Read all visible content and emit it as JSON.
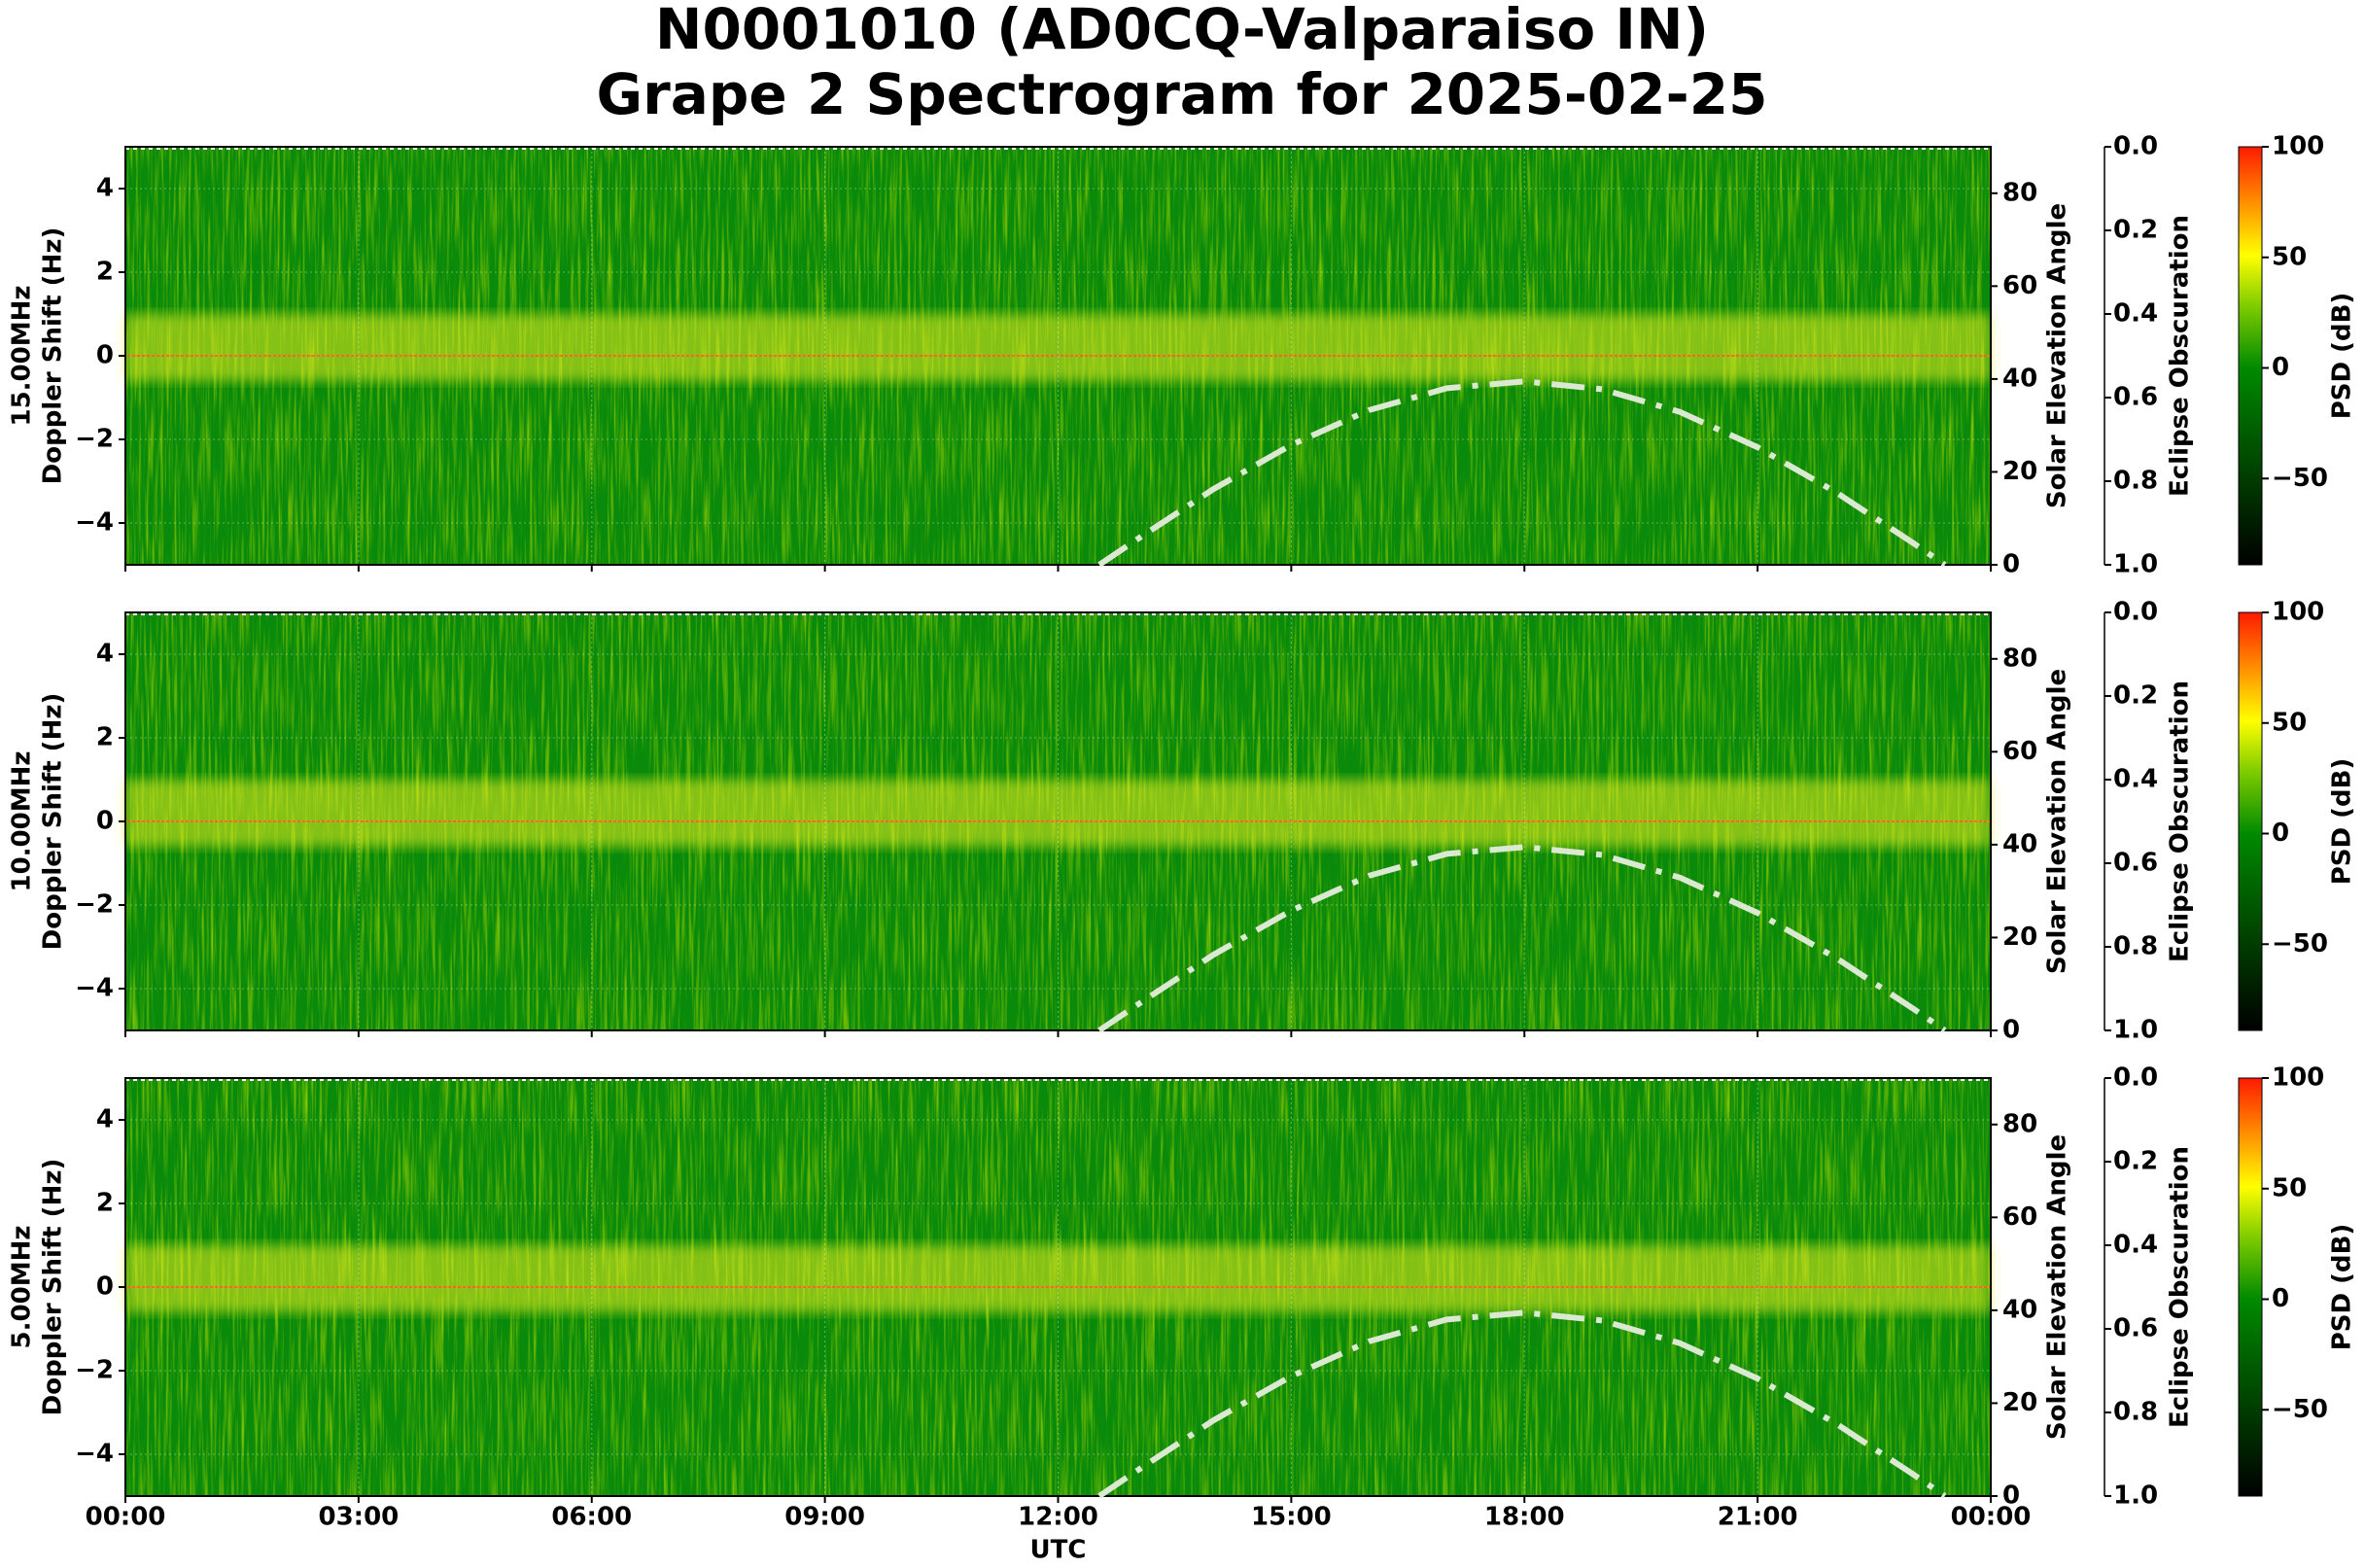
{
  "title": [
    "N0001010 (AD0CQ-Valparaiso IN)",
    "Grape 2 Spectrogram for 2025-02-25"
  ],
  "chart_data": [
    {
      "type": "spectrogram",
      "ylabel": [
        "15.00MHz",
        "Doppler Shift (Hz)"
      ],
      "xlim": [
        0,
        24
      ],
      "xticks": [
        0,
        3,
        6,
        9,
        12,
        15,
        18,
        21,
        24
      ],
      "ylim": [
        -5,
        5
      ],
      "yticks": [
        {
          "value": -4,
          "label": "−4"
        },
        {
          "value": -2,
          "label": "−2"
        },
        0,
        2,
        4
      ],
      "y2label": "Solar Elevation Angle",
      "y2lim": [
        0,
        90
      ],
      "y2ticks": [
        0,
        20,
        40,
        60,
        80
      ],
      "y3label": "Eclipse Obscuration",
      "y3lim": [
        1,
        0
      ],
      "y3ticks": [
        {
          "value": 0,
          "label": "0.0"
        },
        {
          "value": 0.2,
          "label": "0.2"
        },
        {
          "value": 0.4,
          "label": "0.4"
        },
        {
          "value": 0.6,
          "label": "0.6"
        },
        {
          "value": 0.8,
          "label": "0.8"
        },
        {
          "value": 1,
          "label": "1.0"
        }
      ],
      "colorbar_label": "PSD (dB)",
      "clim": [
        -89,
        100
      ],
      "cticks": [
        {
          "value": -50,
          "label": "−50"
        },
        0,
        50,
        100
      ],
      "solar_elevation": {
        "color": "#dbe8d2",
        "axis": "y2",
        "x": [
          12.53,
          13,
          14,
          15,
          16,
          17,
          18,
          19,
          20,
          21,
          22,
          23,
          23.41
        ],
        "values": [
          0,
          5.3,
          16.3,
          25.8,
          33.3,
          38.0,
          39.5,
          37.8,
          32.9,
          25.3,
          15.7,
          4.7,
          0
        ]
      }
    },
    {
      "type": "spectrogram",
      "ylabel": [
        "10.00MHz",
        "Doppler Shift (Hz)"
      ],
      "xlim": [
        0,
        24
      ],
      "xticks": [
        0,
        3,
        6,
        9,
        12,
        15,
        18,
        21,
        24
      ],
      "ylim": [
        -5,
        5
      ],
      "yticks": [
        {
          "value": -4,
          "label": "−4"
        },
        {
          "value": -2,
          "label": "−2"
        },
        0,
        2,
        4
      ],
      "y2label": "Solar Elevation Angle",
      "y2lim": [
        0,
        90
      ],
      "y2ticks": [
        0,
        20,
        40,
        60,
        80
      ],
      "y3label": "Eclipse Obscuration",
      "y3lim": [
        1,
        0
      ],
      "y3ticks": [
        {
          "value": 0,
          "label": "0.0"
        },
        {
          "value": 0.2,
          "label": "0.2"
        },
        {
          "value": 0.4,
          "label": "0.4"
        },
        {
          "value": 0.6,
          "label": "0.6"
        },
        {
          "value": 0.8,
          "label": "0.8"
        },
        {
          "value": 1,
          "label": "1.0"
        }
      ],
      "colorbar_label": "PSD (dB)",
      "clim": [
        -89,
        100
      ],
      "cticks": [
        {
          "value": -50,
          "label": "−50"
        },
        0,
        50,
        100
      ],
      "solar_elevation": {
        "color": "#dbe8d2",
        "axis": "y2",
        "x": [
          12.53,
          13,
          14,
          15,
          16,
          17,
          18,
          19,
          20,
          21,
          22,
          23,
          23.41
        ],
        "values": [
          0,
          5.3,
          16.3,
          25.8,
          33.3,
          38.0,
          39.5,
          37.8,
          32.9,
          25.3,
          15.7,
          4.7,
          0
        ]
      }
    },
    {
      "type": "spectrogram",
      "ylabel": [
        "5.00MHz",
        "Doppler Shift (Hz)"
      ],
      "xlabel": "UTC",
      "xlim": [
        0,
        24
      ],
      "xticks": [
        {
          "value": 0,
          "label": "00:00"
        },
        {
          "value": 3,
          "label": "03:00"
        },
        {
          "value": 6,
          "label": "06:00"
        },
        {
          "value": 9,
          "label": "09:00"
        },
        {
          "value": 12,
          "label": "12:00"
        },
        {
          "value": 15,
          "label": "15:00"
        },
        {
          "value": 18,
          "label": "18:00"
        },
        {
          "value": 21,
          "label": "21:00"
        },
        {
          "value": 24,
          "label": "00:00"
        }
      ],
      "ylim": [
        -5,
        5
      ],
      "yticks": [
        {
          "value": -4,
          "label": "−4"
        },
        {
          "value": -2,
          "label": "−2"
        },
        0,
        2,
        4
      ],
      "y2label": "Solar Elevation Angle",
      "y2lim": [
        0,
        90
      ],
      "y2ticks": [
        0,
        20,
        40,
        60,
        80
      ],
      "y3label": "Eclipse Obscuration",
      "y3lim": [
        1,
        0
      ],
      "y3ticks": [
        {
          "value": 0,
          "label": "0.0"
        },
        {
          "value": 0.2,
          "label": "0.2"
        },
        {
          "value": 0.4,
          "label": "0.4"
        },
        {
          "value": 0.6,
          "label": "0.6"
        },
        {
          "value": 0.8,
          "label": "0.8"
        },
        {
          "value": 1,
          "label": "1.0"
        }
      ],
      "colorbar_label": "PSD (dB)",
      "clim": [
        -89,
        100
      ],
      "cticks": [
        {
          "value": -50,
          "label": "−50"
        },
        0,
        50,
        100
      ],
      "solar_elevation": {
        "color": "#dbe8d2",
        "axis": "y2",
        "x": [
          12.53,
          13,
          14,
          15,
          16,
          17,
          18,
          19,
          20,
          21,
          22,
          23,
          23.41
        ],
        "values": [
          0,
          5.3,
          16.3,
          25.8,
          33.3,
          38.0,
          39.5,
          37.8,
          32.9,
          25.3,
          15.7,
          4.7,
          0
        ]
      }
    }
  ]
}
